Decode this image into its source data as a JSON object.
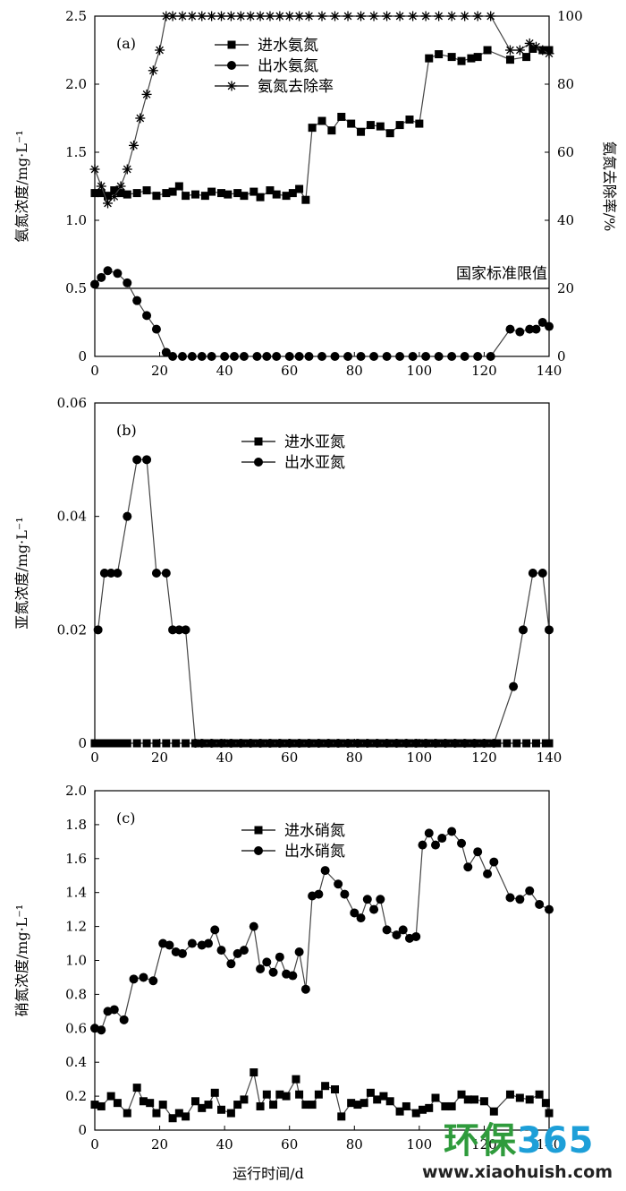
{
  "watermark": {
    "logo_part1": "环保",
    "logo_part2": "365",
    "url": "www.xiaohuish.com"
  },
  "colors": {
    "ink": "#000000",
    "line": "#444444",
    "watermark_green": "#2f9b3c",
    "watermark_blue": "#1d9fd8"
  },
  "chart_data": [
    {
      "panel": "(a)",
      "type": "line",
      "ylabel": "氨氮浓度/mg·L⁻¹",
      "ylabel_right": "氨氮去除率/%",
      "xlim": [
        0,
        140
      ],
      "ylim": [
        0,
        2.5
      ],
      "ylim_right": [
        0,
        100
      ],
      "xticks": [
        0,
        20,
        40,
        60,
        80,
        100,
        120,
        140
      ],
      "yticks": [
        0,
        0.5,
        1.0,
        1.5,
        2.0,
        2.5
      ],
      "ytick_labels": [
        "0",
        "0.5",
        "1.0",
        "1.5",
        "2.0",
        "2.5"
      ],
      "yticks_right": [
        0,
        20,
        40,
        60,
        80,
        100
      ],
      "reference_line": {
        "y": 0.5,
        "label": "国家标准限值"
      },
      "legend_position": "top-center",
      "series": [
        {
          "name": "进水氨氮",
          "marker": "square",
          "axis": "left",
          "x": [
            0,
            2,
            4,
            6,
            8,
            10,
            13,
            16,
            19,
            22,
            24,
            26,
            28,
            31,
            34,
            36,
            39,
            41,
            44,
            46,
            49,
            51,
            54,
            56,
            59,
            61,
            63,
            65,
            67,
            70,
            73,
            76,
            79,
            82,
            85,
            88,
            91,
            94,
            97,
            100,
            103,
            106,
            110,
            113,
            116,
            118,
            121,
            128,
            133,
            135,
            138,
            140
          ],
          "y": [
            1.2,
            1.2,
            1.18,
            1.22,
            1.2,
            1.19,
            1.2,
            1.22,
            1.18,
            1.2,
            1.21,
            1.25,
            1.18,
            1.19,
            1.18,
            1.21,
            1.2,
            1.19,
            1.2,
            1.18,
            1.21,
            1.17,
            1.22,
            1.19,
            1.18,
            1.2,
            1.23,
            1.15,
            1.68,
            1.73,
            1.66,
            1.76,
            1.71,
            1.65,
            1.7,
            1.69,
            1.64,
            1.7,
            1.74,
            1.71,
            2.19,
            2.22,
            2.2,
            2.17,
            2.19,
            2.2,
            2.25,
            2.18,
            2.2,
            2.26,
            2.25,
            2.25
          ]
        },
        {
          "name": "出水氨氮",
          "marker": "circle",
          "axis": "left",
          "x": [
            0,
            2,
            4,
            7,
            10,
            13,
            16,
            19,
            22,
            24,
            27,
            30,
            33,
            36,
            40,
            43,
            46,
            50,
            53,
            56,
            60,
            63,
            66,
            70,
            74,
            78,
            82,
            86,
            90,
            94,
            98,
            102,
            106,
            110,
            114,
            118,
            122,
            128,
            131,
            134,
            136,
            138,
            140
          ],
          "y": [
            0.53,
            0.58,
            0.63,
            0.61,
            0.54,
            0.41,
            0.3,
            0.2,
            0.03,
            0,
            0,
            0,
            0,
            0,
            0,
            0,
            0,
            0,
            0,
            0,
            0,
            0,
            0,
            0,
            0,
            0,
            0,
            0,
            0,
            0,
            0,
            0,
            0,
            0,
            0,
            0,
            0,
            0.2,
            0.18,
            0.2,
            0.2,
            0.25,
            0.22
          ]
        },
        {
          "name": "氨氮去除率",
          "marker": "star",
          "axis": "right",
          "x": [
            0,
            2,
            4,
            6,
            8,
            10,
            12,
            14,
            16,
            18,
            20,
            22,
            24,
            27,
            30,
            33,
            36,
            39,
            42,
            45,
            48,
            51,
            54,
            57,
            60,
            63,
            66,
            70,
            74,
            78,
            82,
            86,
            90,
            94,
            98,
            102,
            106,
            110,
            114,
            118,
            122,
            128,
            131,
            134,
            136,
            138,
            140
          ],
          "y": [
            55,
            50,
            45,
            47,
            50,
            55,
            62,
            70,
            77,
            84,
            90,
            100,
            100,
            100,
            100,
            100,
            100,
            100,
            100,
            100,
            100,
            100,
            100,
            100,
            100,
            100,
            100,
            100,
            100,
            100,
            100,
            100,
            100,
            100,
            100,
            100,
            100,
            100,
            100,
            100,
            100,
            90,
            90,
            92,
            91,
            90,
            89
          ]
        }
      ]
    },
    {
      "panel": "(b)",
      "type": "line",
      "ylabel": "亚氮浓度/mg·L⁻¹",
      "xlim": [
        0,
        140
      ],
      "ylim": [
        0,
        0.06
      ],
      "xticks": [
        0,
        20,
        40,
        60,
        80,
        100,
        120,
        140
      ],
      "yticks": [
        0,
        0.02,
        0.04,
        0.06
      ],
      "ytick_labels": [
        "0",
        "0.02",
        "0.04",
        "0.06"
      ],
      "legend_position": "top-center",
      "series": [
        {
          "name": "进水亚氮",
          "marker": "square",
          "x": [
            0,
            2,
            4,
            6,
            8,
            10,
            13,
            16,
            19,
            22,
            25,
            28,
            31,
            34,
            37,
            40,
            43,
            46,
            49,
            52,
            55,
            58,
            61,
            64,
            67,
            70,
            73,
            76,
            79,
            82,
            85,
            88,
            91,
            94,
            97,
            100,
            103,
            106,
            109,
            112,
            115,
            118,
            121,
            124,
            127,
            130,
            133,
            136,
            139,
            140
          ],
          "y": [
            0,
            0,
            0,
            0,
            0,
            0,
            0,
            0,
            0,
            0,
            0,
            0,
            0,
            0,
            0,
            0,
            0,
            0,
            0,
            0,
            0,
            0,
            0,
            0,
            0,
            0,
            0,
            0,
            0,
            0,
            0,
            0,
            0,
            0,
            0,
            0,
            0,
            0,
            0,
            0,
            0,
            0,
            0,
            0,
            0,
            0,
            0,
            0,
            0,
            0
          ]
        },
        {
          "name": "出水亚氮",
          "marker": "circle",
          "x": [
            1,
            3,
            5,
            7,
            10,
            13,
            16,
            19,
            22,
            24,
            26,
            28,
            31,
            33,
            36,
            39,
            42,
            45,
            48,
            51,
            54,
            57,
            60,
            63,
            66,
            69,
            72,
            75,
            78,
            81,
            84,
            87,
            90,
            93,
            96,
            99,
            102,
            105,
            108,
            111,
            114,
            117,
            120,
            123,
            129,
            132,
            135,
            138,
            140
          ],
          "y": [
            0.02,
            0.03,
            0.03,
            0.03,
            0.04,
            0.05,
            0.05,
            0.03,
            0.03,
            0.02,
            0.02,
            0.02,
            0,
            0,
            0,
            0,
            0,
            0,
            0,
            0,
            0,
            0,
            0,
            0,
            0,
            0,
            0,
            0,
            0,
            0,
            0,
            0,
            0,
            0,
            0,
            0,
            0,
            0,
            0,
            0,
            0,
            0,
            0,
            0,
            0.01,
            0.02,
            0.03,
            0.03,
            0.02
          ]
        }
      ]
    },
    {
      "panel": "(c)",
      "type": "line",
      "ylabel": "硝氮浓度/mg·L⁻¹",
      "xlabel": "运行时间/d",
      "xlim": [
        0,
        140
      ],
      "ylim": [
        0,
        2.0
      ],
      "xticks": [
        0,
        20,
        40,
        60,
        80,
        100,
        120,
        140
      ],
      "yticks": [
        0,
        0.2,
        0.4,
        0.6,
        0.8,
        1.0,
        1.2,
        1.4,
        1.6,
        1.8,
        2.0
      ],
      "ytick_labels": [
        "0",
        "0.2",
        "0.4",
        "0.6",
        "0.8",
        "1.0",
        "1.2",
        "1.4",
        "1.6",
        "1.8",
        "2.0"
      ],
      "legend_position": "top-left",
      "series": [
        {
          "name": "进水硝氮",
          "marker": "square",
          "x": [
            0,
            2,
            5,
            7,
            10,
            13,
            15,
            17,
            19,
            21,
            24,
            26,
            28,
            31,
            33,
            35,
            37,
            39,
            42,
            44,
            46,
            49,
            51,
            53,
            55,
            57,
            59,
            62,
            63,
            65,
            67,
            69,
            71,
            74,
            76,
            79,
            81,
            83,
            85,
            87,
            89,
            91,
            94,
            96,
            99,
            101,
            103,
            105,
            108,
            110,
            113,
            115,
            117,
            120,
            123,
            128,
            131,
            134,
            137,
            139,
            140
          ],
          "y": [
            0.15,
            0.14,
            0.2,
            0.16,
            0.1,
            0.25,
            0.17,
            0.16,
            0.1,
            0.15,
            0.07,
            0.1,
            0.08,
            0.17,
            0.13,
            0.15,
            0.22,
            0.12,
            0.1,
            0.15,
            0.18,
            0.34,
            0.14,
            0.21,
            0.15,
            0.21,
            0.2,
            0.3,
            0.21,
            0.15,
            0.15,
            0.21,
            0.26,
            0.24,
            0.08,
            0.16,
            0.15,
            0.16,
            0.22,
            0.18,
            0.2,
            0.17,
            0.11,
            0.14,
            0.1,
            0.12,
            0.13,
            0.19,
            0.14,
            0.14,
            0.21,
            0.18,
            0.18,
            0.17,
            0.11,
            0.21,
            0.19,
            0.18,
            0.21,
            0.16,
            0.1
          ]
        },
        {
          "name": "出水硝氮",
          "marker": "circle",
          "x": [
            0,
            2,
            4,
            6,
            9,
            12,
            15,
            18,
            21,
            23,
            25,
            27,
            30,
            33,
            35,
            37,
            39,
            42,
            44,
            46,
            49,
            51,
            53,
            55,
            57,
            59,
            61,
            63,
            65,
            67,
            69,
            71,
            75,
            77,
            80,
            82,
            84,
            86,
            88,
            90,
            93,
            95,
            97,
            99,
            101,
            103,
            105,
            107,
            110,
            113,
            115,
            118,
            121,
            123,
            128,
            131,
            134,
            137,
            140
          ],
          "y": [
            0.6,
            0.59,
            0.7,
            0.71,
            0.65,
            0.89,
            0.9,
            0.88,
            1.1,
            1.09,
            1.05,
            1.04,
            1.1,
            1.09,
            1.1,
            1.18,
            1.06,
            0.98,
            1.04,
            1.06,
            1.2,
            0.95,
            0.99,
            0.93,
            1.02,
            0.92,
            0.91,
            1.05,
            0.83,
            1.38,
            1.39,
            1.53,
            1.45,
            1.39,
            1.28,
            1.25,
            1.36,
            1.3,
            1.36,
            1.18,
            1.15,
            1.18,
            1.13,
            1.14,
            1.68,
            1.75,
            1.68,
            1.72,
            1.76,
            1.69,
            1.55,
            1.64,
            1.51,
            1.58,
            1.37,
            1.36,
            1.41,
            1.33,
            1.3
          ]
        }
      ]
    }
  ]
}
